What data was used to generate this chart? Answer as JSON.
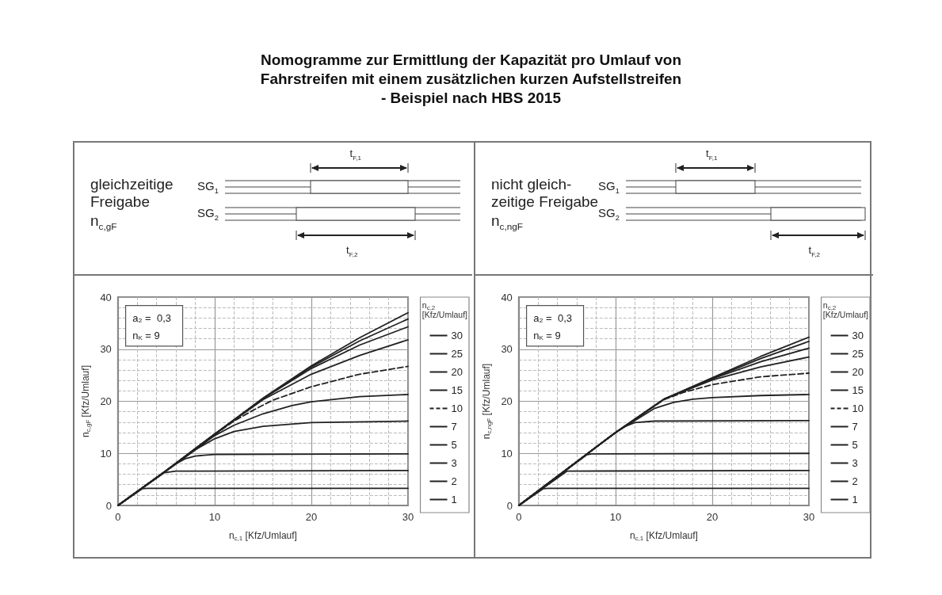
{
  "chart_data": [
    {
      "type": "line",
      "title": "Nomogramme zur Ermittlung der Kapazität pro Umlauf von\nFahrstreifen mit einem zusätzlichen kurzen  Aufstellstreifen\n- Beispiel nach HBS 2015",
      "xlabel": "n$_{c,1}$ [Kfz/Umlauf]",
      "ylabel": "n$_{c,gF}$ [Kfz/Umlauf]",
      "legend_title": "n$_{c,2}$\n[Kfz/Umlauf]",
      "annotations": [
        "gleichzeitige\nFreigabe",
        "n$_{c,gF}$",
        "SG$_{1}$",
        "SG$_{2}$",
        "t$_{F,1}$",
        "t$_{F,2}$",
        "a₂ =  0,3",
        "n$_{K}$ = 9"
      ],
      "xlim": [
        0,
        30
      ],
      "xticks": [
        0,
        10,
        20,
        30
      ],
      "ylim": [
        0,
        40
      ],
      "yticks": [
        0,
        10,
        20,
        30,
        40
      ],
      "grid": true,
      "legend": "right",
      "marker": "none",
      "series": [
        {
          "name": "30",
          "color": "#222222",
          "x": [
            0,
            5,
            10,
            15,
            20,
            25,
            30
          ],
          "values": [
            0,
            6.7,
            13.7,
            20.6,
            26.8,
            32.2,
            37
          ]
        },
        {
          "name": "25",
          "color": "#222222",
          "x": [
            0,
            5,
            10,
            15,
            20,
            25,
            30
          ],
          "values": [
            0,
            6.7,
            13.7,
            20.5,
            26.6,
            31.6,
            35.8
          ]
        },
        {
          "name": "20",
          "color": "#222222",
          "x": [
            0,
            5,
            10,
            15,
            20,
            25,
            30
          ],
          "values": [
            0,
            6.7,
            13.7,
            20.5,
            26.3,
            30.8,
            34.3
          ]
        },
        {
          "name": "15",
          "color": "#222222",
          "x": [
            0,
            5,
            10,
            15,
            20,
            25,
            30
          ],
          "values": [
            0,
            6.7,
            13.7,
            20.3,
            25.2,
            28.8,
            31.8
          ]
        },
        {
          "name": "10",
          "color": "#222222",
          "line_style": "dashed",
          "x": [
            0,
            8,
            10,
            12,
            14,
            16,
            20,
            25,
            30
          ],
          "values": [
            0,
            10.8,
            13.6,
            16.2,
            18.3,
            20.2,
            22.8,
            25.2,
            26.7
          ]
        },
        {
          "name": "7",
          "color": "#222222",
          "x": [
            0,
            8,
            10,
            12,
            15,
            18,
            20,
            25,
            30
          ],
          "values": [
            0,
            10.7,
            13.4,
            15.4,
            17.6,
            19.2,
            19.9,
            20.9,
            21.3
          ]
        },
        {
          "name": "5",
          "color": "#222222",
          "x": [
            0,
            8,
            10,
            12,
            15,
            20,
            30
          ],
          "values": [
            0,
            10.7,
            12.8,
            14.2,
            15.2,
            15.9,
            16.2
          ]
        },
        {
          "name": "3",
          "color": "#222222",
          "x": [
            0,
            6,
            7,
            8,
            10,
            30
          ],
          "values": [
            0,
            8,
            9,
            9.5,
            9.8,
            9.9
          ]
        },
        {
          "name": "2",
          "color": "#222222",
          "x": [
            0,
            4.8,
            6,
            30
          ],
          "values": [
            0,
            6.3,
            6.6,
            6.7
          ]
        },
        {
          "name": "1",
          "color": "#222222",
          "x": [
            0,
            2.5,
            3,
            30
          ],
          "values": [
            0,
            3.2,
            3.3,
            3.3
          ]
        }
      ]
    },
    {
      "type": "line",
      "xlabel": "n$_{c,1}$ [Kfz/Umlauf]",
      "ylabel": "n$_{c,ngF}$ [Kfz/Umlauf]",
      "legend_title": "n$_{c,2}$\n[Kfz/Umlauf]",
      "annotations": [
        "nicht gleich-\nzeitige Freigabe",
        "n$_{c,ngF}$",
        "SG$_{1}$",
        "SG$_{2}$",
        "t$_{F,1}$",
        "t$_{F,2}$",
        "a₂ =  0,3",
        "n$_{K}$ = 9"
      ],
      "xlim": [
        0,
        30
      ],
      "xticks": [
        0,
        10,
        20,
        30
      ],
      "ylim": [
        0,
        40
      ],
      "yticks": [
        0,
        10,
        20,
        30,
        40
      ],
      "grid": true,
      "legend": "right",
      "marker": "none",
      "series": [
        {
          "name": "30",
          "color": "#222222",
          "x": [
            0,
            5,
            10,
            15,
            20,
            25,
            30
          ],
          "values": [
            0,
            7,
            14,
            20.4,
            24.5,
            28.6,
            32.3
          ]
        },
        {
          "name": "25",
          "color": "#222222",
          "x": [
            0,
            5,
            10,
            15,
            20,
            25,
            30
          ],
          "values": [
            0,
            7,
            14,
            20.4,
            24.4,
            28.2,
            31.5
          ]
        },
        {
          "name": "20",
          "color": "#222222",
          "x": [
            0,
            5,
            10,
            15,
            20,
            25,
            30
          ],
          "values": [
            0,
            7,
            14,
            20.4,
            24.3,
            27.6,
            30.2
          ]
        },
        {
          "name": "15",
          "color": "#222222",
          "x": [
            0,
            5,
            10,
            15,
            20,
            25,
            30
          ],
          "values": [
            0,
            7,
            14,
            20.4,
            24.1,
            26.6,
            28.5
          ]
        },
        {
          "name": "10",
          "color": "#222222",
          "line_style": "dashed",
          "x": [
            0,
            10,
            15,
            17,
            20,
            25,
            30
          ],
          "values": [
            0,
            14,
            20.3,
            21.7,
            23.2,
            24.7,
            25.4
          ]
        },
        {
          "name": "7",
          "color": "#222222",
          "x": [
            0,
            10,
            14,
            16,
            18,
            20,
            25,
            30
          ],
          "values": [
            0,
            14,
            18.6,
            19.8,
            20.4,
            20.7,
            21.1,
            21.3
          ]
        },
        {
          "name": "5",
          "color": "#222222",
          "x": [
            0,
            10,
            11,
            12,
            14,
            30
          ],
          "values": [
            0,
            14,
            15.2,
            15.9,
            16.2,
            16.3
          ]
        },
        {
          "name": "3",
          "color": "#222222",
          "x": [
            0,
            7,
            7.5,
            30
          ],
          "values": [
            0,
            9.7,
            9.9,
            10
          ]
        },
        {
          "name": "2",
          "color": "#222222",
          "x": [
            0,
            5,
            30
          ],
          "values": [
            0,
            6.6,
            6.7
          ]
        },
        {
          "name": "1",
          "color": "#222222",
          "x": [
            0,
            2.5,
            3,
            30
          ],
          "values": [
            0,
            3.2,
            3.3,
            3.3
          ]
        }
      ]
    }
  ]
}
